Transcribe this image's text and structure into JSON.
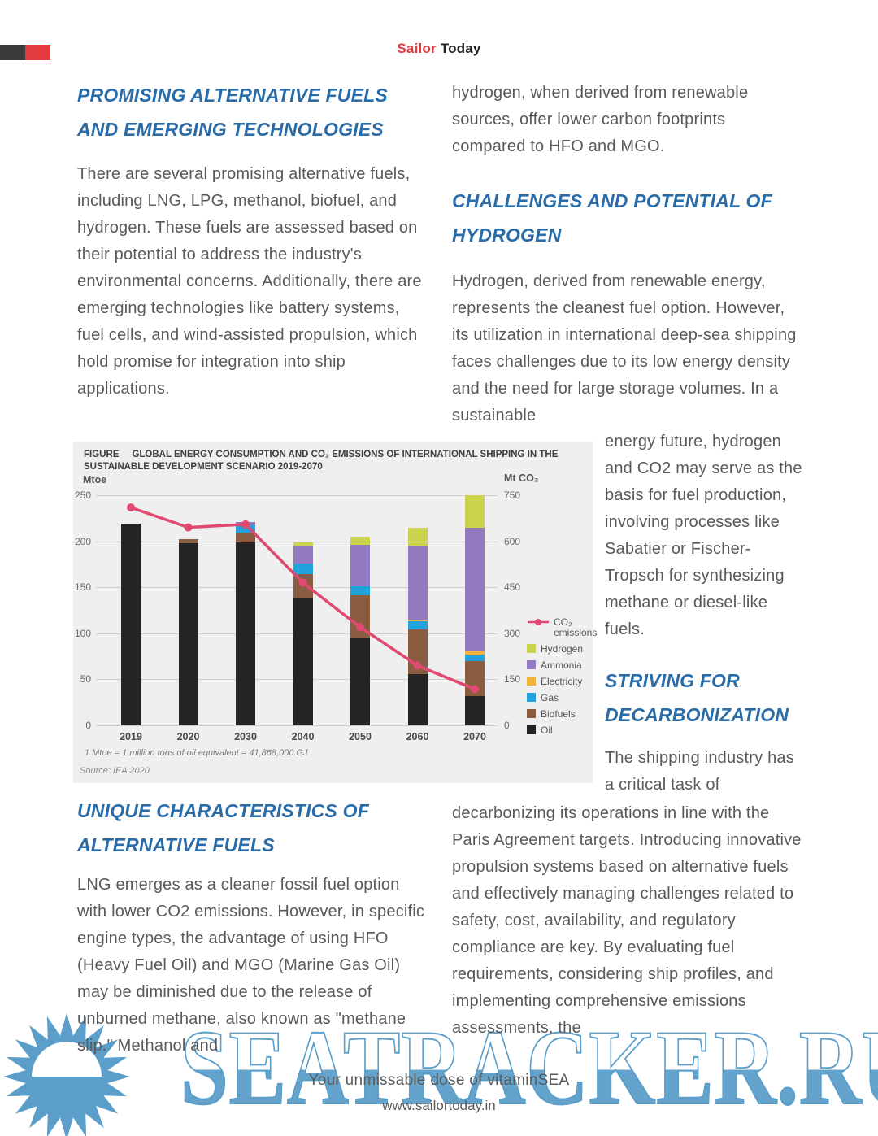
{
  "header": {
    "brand_red": "Sailor",
    "brand_dark": "Today"
  },
  "left_column": {
    "heading1": "PROMISING ALTERNATIVE FUELS AND EMERGING TECHNOLOGIES",
    "para1": "There are several promising alternative fuels, including LNG, LPG, methanol, biofuel, and hydrogen. These fuels are assessed based on their potential to address the industry's environmental concerns. Additionally, there are emerging technologies like battery systems, fuel cells, and wind-assisted propulsion, which hold promise for integration into ship applications.",
    "heading2": "UNIQUE CHARACTERISTICS OF ALTERNATIVE FUELS",
    "para2": "LNG emerges as a cleaner fossil fuel option with lower CO2 emissions. However, in specific engine types, the advantage of using HFO (Heavy Fuel Oil) and MGO (Marine Gas Oil) may be diminished due to the release of unburned methane, also known as \"methane slip.\" Methanol and"
  },
  "right_column": {
    "para1": "hydrogen, when derived from renewable sources, offer lower carbon footprints compared to HFO and MGO.",
    "heading1": "CHALLENGES AND POTENTIAL OF HYDROGEN",
    "para2_wide": "Hydrogen, derived from renewable energy, represents the cleanest fuel option. However, its utilization in international deep-sea shipping faces challenges due to its low energy density and the need for large storage volumes. In a sustainable",
    "para2_narrow": "energy future, hydrogen and CO2 may serve as the basis for fuel production, involving processes like Sabatier or Fischer-Tropsch for synthesizing methane or diesel-like fuels.",
    "heading2": "STRIVING FOR DECARBONIZATION",
    "para3_narrow": "The shipping industry has a critical task of",
    "para3_wide": "decarbonizing its operations in line with the Paris Agreement targets. Introducing innovative propulsion systems based on alternative fuels and effectively managing challenges related to safety, cost, availability, and regulatory compliance are key. By evaluating fuel requirements, considering ship profiles, and implementing comprehensive emissions assessments, the"
  },
  "chart_data": {
    "type": "bar",
    "title_prefix": "FIGURE",
    "title": "GLOBAL ENERGY CONSUMPTION AND CO₂ EMISSIONS OF INTERNATIONAL SHIPPING IN THE SUSTAINABLE DEVELOPMENT SCENARIO 2019-2070",
    "left_axis_label": "Mtoe",
    "right_axis_label": "Mt CO₂",
    "left_range": [
      0,
      250
    ],
    "right_range": [
      0,
      750
    ],
    "left_ticks": [
      0,
      50,
      100,
      150,
      200,
      250
    ],
    "right_ticks": [
      0,
      150,
      300,
      450,
      600,
      750
    ],
    "grid": true,
    "legend_position": "right",
    "categories": [
      "2019",
      "2020",
      "2030",
      "2040",
      "2050",
      "2060",
      "2070"
    ],
    "series": [
      {
        "name": "Oil",
        "color": "#262324",
        "values": [
          219,
          198,
          199,
          138,
          95,
          56,
          32
        ]
      },
      {
        "name": "Biofuels",
        "color": "#8a5d41",
        "values": [
          0,
          4,
          10,
          26,
          46,
          48,
          38
        ]
      },
      {
        "name": "Gas",
        "color": "#22a2dd",
        "values": [
          0,
          0,
          8,
          12,
          10,
          9,
          7
        ]
      },
      {
        "name": "Electricity",
        "color": "#f0b43c",
        "values": [
          0,
          0,
          0,
          0,
          0,
          2,
          4
        ]
      },
      {
        "name": "Ammonia",
        "color": "#9379bf",
        "values": [
          0,
          0,
          4,
          18,
          45,
          80,
          134
        ]
      },
      {
        "name": "Hydrogen",
        "color": "#ccd44d",
        "values": [
          0,
          0,
          0,
          5,
          9,
          20,
          35
        ]
      }
    ],
    "line_series": {
      "name": "CO₂ emissions",
      "legend_lines": [
        "CO₂",
        "emissions"
      ],
      "color": "#e04a70",
      "axis": "right",
      "values": [
        710,
        645,
        655,
        465,
        320,
        195,
        118
      ]
    },
    "legend_order": [
      "Hydrogen",
      "Ammonia",
      "Electricity",
      "Gas",
      "Biofuels",
      "Oil"
    ],
    "footnote": "1 Mtoe = 1 million tons of oil equivalent = 41,868,000 GJ",
    "source": "Source: IEA 2020",
    "background": "#efeff0",
    "grid_color": "#cfcfcf"
  },
  "footer": {
    "tagline": "Your unmissable dose of vitaminSEA",
    "website": "www.sailortoday.in"
  },
  "watermark": {
    "text": "SEATRACKER.RU",
    "color": "#5b9ec9"
  }
}
